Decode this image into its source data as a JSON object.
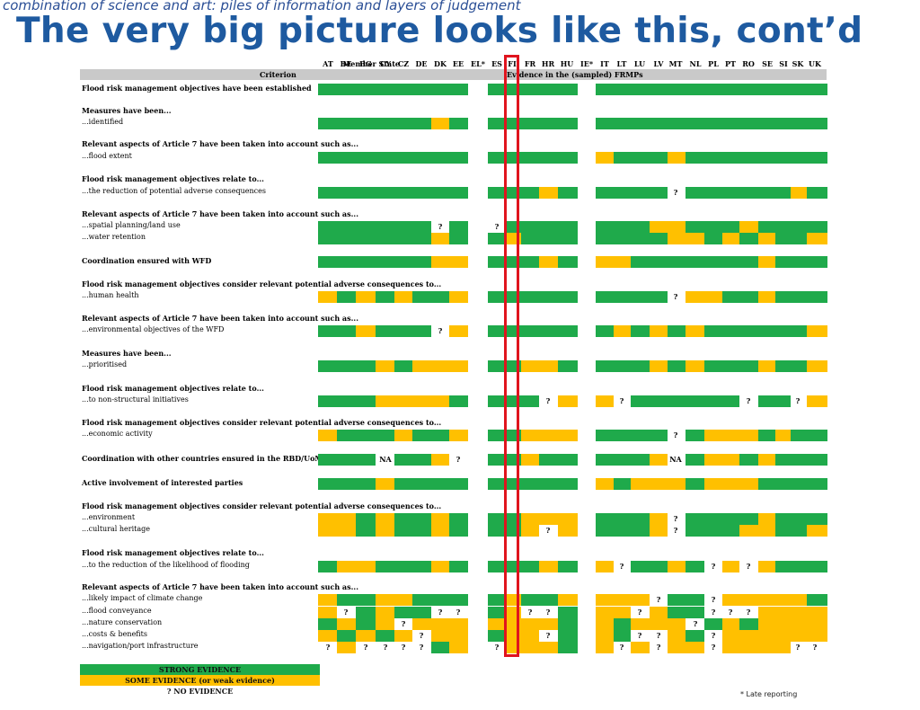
{
  "subtitle": "combination of science and art: piles of information and layers of judgement",
  "title": "The very big picture looks like this, cont’d",
  "header": {
    "member_state_label": "Member State",
    "criterion_label": "Criterion",
    "evidence_label": "Evidence in the (sampled) FRMPs",
    "countries": [
      "AT",
      "BE",
      "BG",
      "CY",
      "CZ",
      "DE",
      "DK",
      "EE",
      "EL*",
      "ES",
      "FI",
      "FR",
      "HR",
      "HU",
      "IE*",
      "IT",
      "LT",
      "LU",
      "LV",
      "MT",
      "NL",
      "PL",
      "PT",
      "RO",
      "SE",
      "SI",
      "SK",
      "UK"
    ]
  },
  "colors": {
    "strong": "#1faa4b",
    "some": "#ffc000",
    "none": "#ffffff",
    "highlight": "#e0141e"
  },
  "highlighted_country": "FI",
  "groups": [
    {
      "heading": "Flood risk management objectives have been established",
      "heading_bold": true,
      "items": [
        {
          "label": "",
          "cells": "SSSSSSSS_SSSSS_SSSSSSSSSSSSS"
        }
      ]
    },
    {
      "heading": "Measures have been...",
      "heading_bold": true,
      "items": [
        {
          "label": "...identified",
          "cells": "SSSSSSWS_SSSSS_SSSSSSSSSSSSS"
        }
      ]
    },
    {
      "heading": "Relevant aspects of Article 7 have been taken into account such as...",
      "heading_bold": true,
      "items": [
        {
          "label": "...flood extent",
          "cells": "SSSSSSSS_SSSSS_WSSSWSSSSSSSS"
        }
      ]
    },
    {
      "heading": "Flood risk management objectives relate to...",
      "heading_bold": true,
      "items": [
        {
          "label": "...the reduction of potential adverse consequences",
          "cells": "SSSSSSSS_SSSWS_SSSSQSSSSSSWS"
        }
      ]
    },
    {
      "heading": "Relevant aspects of Article 7 have been taken into account such as...",
      "heading_bold": true,
      "items": [
        {
          "label": "...spatial planning/land use",
          "cells": "SSSSSSQS_QSSSS_SSSWWSSSWSSSS"
        },
        {
          "label": "...water retention",
          "cells": "SSSSSSWS_SWSSS_SSSSWWSWSWSSW"
        }
      ]
    },
    {
      "heading": "Coordination ensured with WFD",
      "heading_bold": true,
      "items": [
        {
          "label": "",
          "cells": "SSSSSSWW_SSSWS_WWSSSSSSSWSSS"
        }
      ]
    },
    {
      "heading": "Flood risk management objectives consider relevant potential adverse consequences to...",
      "heading_bold": true,
      "items": [
        {
          "label": "...human health",
          "cells": "WSWSWSSW_SSSSS_SSSSQWWSSWSSS"
        }
      ]
    },
    {
      "heading": "Relevant aspects of Article 7 have been taken into account such as...",
      "heading_bold": true,
      "items": [
        {
          "label": "...environmental objectives of the WFD",
          "cells": "SSWSSSQW_SSSSS_SWSWSWSSSSSSW"
        }
      ]
    },
    {
      "heading": "Measures have been...",
      "heading_bold": true,
      "items": [
        {
          "label": "...prioritised",
          "cells": "SSSWSWWW_SSWWS_SSSWSWSSSWSSW"
        }
      ]
    },
    {
      "heading": "Flood risk management objectives relate to...",
      "heading_bold": true,
      "items": [
        {
          "label": "...to non-structural initiatives",
          "cells": "SSSWWWWS_SSSQW_WQSSSSSSQSSQW"
        }
      ]
    },
    {
      "heading": "Flood risk management objectives consider relevant potential adverse consequences to...",
      "heading_bold": true,
      "items": [
        {
          "label": "...economic activity",
          "cells": "WSSSWSSW_SSWWW_SSSSQSWWWSWSS"
        }
      ]
    },
    {
      "heading": "Coordination with other countries ensured in the RBD/UoM",
      "heading_bold": true,
      "items": [
        {
          "label": "",
          "cells": "SSSNSSWQ_SSWSS_SSSWNSWWSWSSS"
        }
      ]
    },
    {
      "heading": "Active involvement of interested parties",
      "heading_bold": true,
      "items": [
        {
          "label": "",
          "cells": "SSSWSSSS_SSSSS_WSWWWSWWWSSSS"
        }
      ]
    },
    {
      "heading": "Flood risk management objectives consider relevant potential adverse consequences to...",
      "heading_bold": true,
      "items": [
        {
          "label": "...environment",
          "cells": "WWSWSSWS_SSWWW_SSSWQSSSSWSSS"
        },
        {
          "label": "...cultural heritage",
          "cells": "WWSWSSWS_SSWQW_SSSWQSSSWWSSW"
        }
      ]
    },
    {
      "heading": "Flood risk management objectives relate to...",
      "heading_bold": true,
      "items": [
        {
          "label": "...to the reduction of the likelihood of flooding",
          "cells": "SWWSSSWS_SSSWS_WQSSWSQWQWSSS"
        }
      ]
    },
    {
      "heading": "Relevant aspects of Article 7 have been taken into account such as...",
      "heading_bold": true,
      "items": [
        {
          "label": "...likely impact of climate change",
          "cells": "WSSWWSSS_SWSSW_WWWQSSQWWWWWS"
        },
        {
          "label": "...flood conveyance",
          "cells": "WQSWSSQQ_SWQQS_WWQWSSQQQWWWW"
        },
        {
          "label": "...nature conservation",
          "cells": "SWSWQWWW_WWWWS_WSWWWQSWSWWWW"
        },
        {
          "label": "...costs & benefits",
          "cells": "WSWSWQWW_SWWQS_WSQQWSQWWWWWW"
        },
        {
          "label": "...navigation/port infrastructure",
          "cells": "QWQQQQSW_QWWWS_WQWQWWQWWWWQQ"
        }
      ]
    }
  ],
  "cell_marks": {
    "Q": "?",
    "N": "NA"
  },
  "legend": {
    "strong": "STRONG EVIDENCE",
    "some": "SOME EVIDENCE (or weak evidence)",
    "none": "? NO EVIDENCE"
  },
  "footnote": "* Late reporting"
}
